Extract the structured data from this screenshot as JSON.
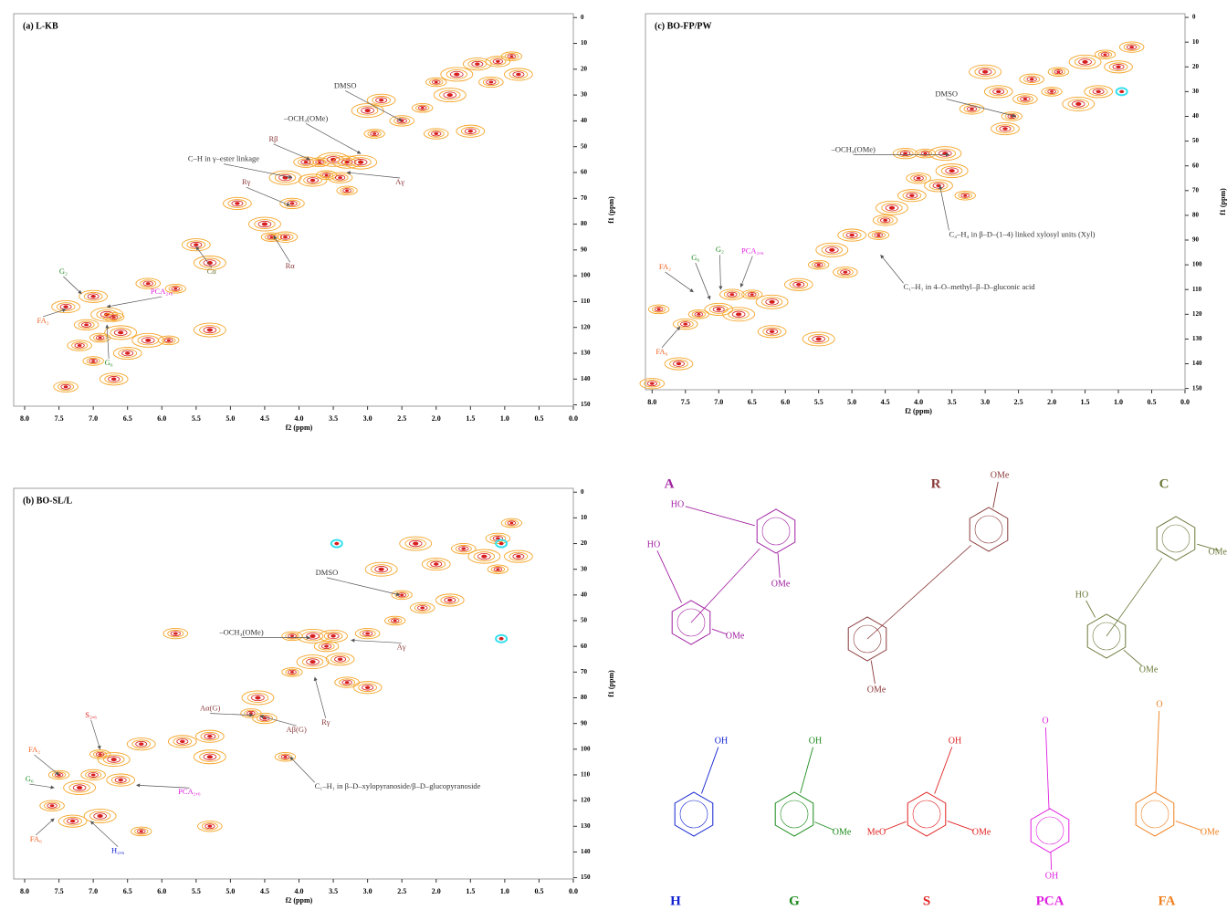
{
  "chart_data": [
    {
      "type": "contour",
      "title": "(a) L-KB",
      "xlabel": "f2 (ppm)",
      "ylabel": "f1 (ppm)",
      "xlim": [
        8.16,
        0
      ],
      "ylim": [
        -1.5,
        150.5
      ],
      "xticks": [
        {
          "value": 8,
          "label": "8.0"
        },
        {
          "value": 7.5,
          "label": "7.5"
        },
        {
          "value": 7,
          "label": "7.0"
        },
        {
          "value": 6.5,
          "label": "6.5"
        },
        {
          "value": 6,
          "label": "6.0"
        },
        {
          "value": 5.5,
          "label": "5.5"
        },
        {
          "value": 5,
          "label": "5.0"
        },
        {
          "value": 4.5,
          "label": "4.5"
        },
        {
          "value": 4,
          "label": "4.0"
        },
        {
          "value": 3.5,
          "label": "3.5"
        },
        {
          "value": 3,
          "label": "3.0"
        },
        {
          "value": 2.5,
          "label": "2.5"
        },
        {
          "value": 2,
          "label": "2.0"
        },
        {
          "value": 1.5,
          "label": "1.5"
        },
        {
          "value": 1,
          "label": "1.0"
        },
        {
          "value": 0.5,
          "label": "0.5"
        },
        {
          "value": 0,
          "label": "0.0"
        }
      ],
      "yticks": [
        0,
        10,
        20,
        30,
        40,
        50,
        60,
        70,
        80,
        90,
        100,
        110,
        120,
        130,
        140,
        150
      ],
      "color": "#f5a52a",
      "core_color": "#d61e1e",
      "accent_color": "#36e0f0",
      "peaks": {
        "x": [
          0.9,
          1.1,
          1.4,
          1.7,
          2.0,
          1.2,
          0.8,
          1.8,
          2.2,
          2.5,
          2.8,
          3.0,
          2.9,
          2.0,
          1.5,
          3.5,
          3.7,
          3.9,
          3.3,
          3.1,
          3.6,
          3.4,
          3.8,
          4.2,
          3.3,
          4.1,
          4.9,
          4.5,
          4.4,
          4.2,
          5.5,
          5.3,
          5.8,
          6.2,
          7.0,
          6.8,
          6.7,
          7.1,
          7.4,
          6.6,
          6.9,
          7.2,
          6.5,
          6.2,
          7.0,
          7.4,
          6.7,
          5.3,
          5.9
        ],
        "y": [
          15,
          17,
          18,
          22,
          25,
          25,
          22,
          30,
          35,
          40,
          32,
          36,
          45,
          45,
          44,
          55,
          56,
          56,
          56,
          56,
          61,
          62,
          63,
          62,
          67,
          72,
          72,
          80,
          85,
          85,
          88,
          95,
          105,
          103,
          108,
          115,
          116,
          119,
          112,
          122,
          124,
          127,
          130,
          125,
          133,
          143,
          140,
          121,
          125
        ]
      },
      "accent_peaks": {
        "x": [],
        "y": []
      },
      "annotations": [
        {
          "text": "DMSO",
          "x": 2.5,
          "y": 40,
          "color": "#333333"
        },
        {
          "text": "–OCH₃(OMe)",
          "x": 3.1,
          "y": 52.7,
          "color": "#333333"
        },
        {
          "text": "Rβ",
          "x": 3.84,
          "y": 55,
          "color": "#8b3a3a"
        },
        {
          "text": "C–H in γ–ester linkage",
          "x": 4.1,
          "y": 62,
          "color": "#333333"
        },
        {
          "text": "Aγ",
          "x": 3.3,
          "y": 60,
          "color": "#8b3a3a"
        },
        {
          "text": "Rγ",
          "x": 4.13,
          "y": 72.8,
          "color": "#8b3a3a"
        },
        {
          "text": "Rα",
          "x": 4.37,
          "y": 84.5,
          "color": "#8b3a3a"
        },
        {
          "text": "Cα",
          "x": 5.5,
          "y": 88.7,
          "color": "#6b7a3a"
        },
        {
          "text": "G₂",
          "x": 7.17,
          "y": 107,
          "color": "#1a8a1a"
        },
        {
          "text": "PCA₂,₆",
          "x": 6.8,
          "y": 112,
          "color": "#e020e0"
        },
        {
          "text": "FA₂",
          "x": 7.4,
          "y": 113,
          "color": "#f06020"
        },
        {
          "text": "G₆",
          "x": 6.8,
          "y": 119,
          "color": "#1a8a1a"
        }
      ]
    },
    {
      "type": "contour",
      "title": "(b) BO-SL/L",
      "xlabel": "f2 (ppm)",
      "ylabel": "f1 (ppm)",
      "xlim": [
        8.16,
        0
      ],
      "ylim": [
        -1.5,
        150.5
      ],
      "xticks": [
        {
          "value": 8,
          "label": "8.0"
        },
        {
          "value": 7.5,
          "label": "7.5"
        },
        {
          "value": 7,
          "label": "7.0"
        },
        {
          "value": 6.5,
          "label": "6.5"
        },
        {
          "value": 6,
          "label": "6.0"
        },
        {
          "value": 5.5,
          "label": "5.5"
        },
        {
          "value": 5,
          "label": "5.0"
        },
        {
          "value": 4.5,
          "label": "4.5"
        },
        {
          "value": 4,
          "label": "4.0"
        },
        {
          "value": 3.5,
          "label": "3.5"
        },
        {
          "value": 3,
          "label": "3.0"
        },
        {
          "value": 2.5,
          "label": "2.5"
        },
        {
          "value": 2,
          "label": "2.0"
        },
        {
          "value": 1.5,
          "label": "1.5"
        },
        {
          "value": 1,
          "label": "1.0"
        },
        {
          "value": 0.5,
          "label": "0.5"
        },
        {
          "value": 0,
          "label": "0.0"
        }
      ],
      "yticks": [
        0,
        10,
        20,
        30,
        40,
        50,
        60,
        70,
        80,
        90,
        100,
        110,
        120,
        130,
        140,
        150
      ],
      "color": "#f5a52a",
      "core_color": "#d61e1e",
      "accent_color": "#36e0f0",
      "peaks": {
        "x": [
          0.9,
          1.1,
          0.8,
          1.3,
          1.1,
          1.6,
          2.0,
          2.3,
          2.5,
          2.2,
          1.8,
          2.8,
          2.6,
          3.0,
          3.5,
          3.8,
          4.1,
          3.6,
          3.4,
          3.8,
          4.1,
          3.3,
          3.0,
          4.6,
          4.7,
          4.5,
          5.3,
          5.3,
          4.2,
          5.8,
          6.3,
          6.7,
          6.9,
          7.0,
          6.6,
          7.2,
          7.5,
          7.6,
          7.3,
          6.9,
          6.3,
          5.3,
          5.7
        ],
        "y": [
          12,
          18,
          25,
          25,
          30,
          22,
          28,
          20,
          40,
          45,
          42,
          30,
          50,
          55,
          56,
          56,
          56,
          60,
          65,
          66,
          70,
          74,
          76,
          80,
          86,
          88,
          95,
          103,
          103,
          55,
          98,
          104,
          102,
          110,
          112,
          115,
          110,
          122,
          128,
          126,
          132,
          130,
          97
        ]
      },
      "accent_peaks": {
        "x": [
          3.45,
          1.05,
          1.05
        ],
        "y": [
          20,
          57,
          20
        ]
      },
      "annotations": [
        {
          "text": "DMSO",
          "x": 2.53,
          "y": 40,
          "color": "#333333"
        },
        {
          "text": "–OCH₃(OMe)",
          "x": 3.84,
          "y": 56.6,
          "color": "#333333"
        },
        {
          "text": "Aγ",
          "x": 3.24,
          "y": 57.6,
          "color": "#8b3a3a"
        },
        {
          "text": "Aα(G)",
          "x": 4.67,
          "y": 86.8,
          "color": "#8b3a3a"
        },
        {
          "text": "Aβ(G)",
          "x": 4.57,
          "y": 87,
          "color": "#8b3a3a"
        },
        {
          "text": "Rγ",
          "x": 3.77,
          "y": 72,
          "color": "#8b3a3a"
        },
        {
          "text": "C₁–H₁ in β–D–xylopyranoside/β–D–glucopyranoside",
          "x": 4.13,
          "y": 103,
          "color": "#333333"
        },
        {
          "text": "S₂,₆",
          "x": 6.9,
          "y": 100,
          "color": "#e02020"
        },
        {
          "text": "FA₂",
          "x": 7.5,
          "y": 110,
          "color": "#f06020"
        },
        {
          "text": "G₆",
          "x": 7.57,
          "y": 115,
          "color": "#1a8a1a"
        },
        {
          "text": "PCA₂,₆",
          "x": 6.37,
          "y": 114,
          "color": "#e020e0"
        },
        {
          "text": "FA₆",
          "x": 7.57,
          "y": 127,
          "color": "#f06020"
        },
        {
          "text": "H₂,₆",
          "x": 7.04,
          "y": 128,
          "color": "#1020d0"
        }
      ]
    },
    {
      "type": "contour",
      "title": "(c) BO-FP/PW",
      "xlabel": "f2 (ppm)",
      "ylabel": "f1 (ppm)",
      "xlim": [
        8.1,
        0
      ],
      "ylim": [
        -1.5,
        150.5
      ],
      "xticks": [
        {
          "value": 8,
          "label": "8.0"
        },
        {
          "value": 7.5,
          "label": "7.5"
        },
        {
          "value": 7,
          "label": "7.0"
        },
        {
          "value": 6.5,
          "label": "6.5"
        },
        {
          "value": 6,
          "label": "6.0"
        },
        {
          "value": 5.5,
          "label": "5.5"
        },
        {
          "value": 5,
          "label": "5.0"
        },
        {
          "value": 4.5,
          "label": "4.5"
        },
        {
          "value": 4,
          "label": "4.0"
        },
        {
          "value": 3.5,
          "label": "3.5"
        },
        {
          "value": 3,
          "label": "3.0"
        },
        {
          "value": 2.5,
          "label": "2.5"
        },
        {
          "value": 2,
          "label": "2.0"
        },
        {
          "value": 1.5,
          "label": "1.5"
        },
        {
          "value": 1,
          "label": "1.0"
        },
        {
          "value": 0.5,
          "label": "0.5"
        },
        {
          "value": 0,
          "label": "0.0"
        }
      ],
      "yticks": [
        0,
        10,
        20,
        30,
        40,
        50,
        60,
        70,
        80,
        90,
        100,
        110,
        120,
        130,
        140,
        150
      ],
      "color": "#f5a52a",
      "core_color": "#d61e1e",
      "accent_color": "#36e0f0",
      "peaks": {
        "x": [
          1.2,
          0.8,
          1.0,
          1.5,
          1.9,
          2.3,
          1.3,
          1.6,
          2.0,
          2.4,
          2.8,
          3.0,
          2.6,
          3.2,
          2.7,
          3.6,
          3.9,
          4.2,
          3.7,
          3.5,
          3.3,
          4.0,
          4.1,
          4.4,
          4.6,
          4.5,
          5.0,
          5.3,
          5.5,
          5.1,
          5.8,
          6.2,
          6.5,
          6.8,
          7.0,
          6.7,
          7.3,
          7.5,
          6.2,
          5.5,
          7.9,
          8.0,
          7.6
        ],
        "y": [
          15,
          12,
          20,
          18,
          22,
          25,
          30,
          35,
          30,
          33,
          30,
          22,
          40,
          37,
          45,
          55,
          55,
          55,
          68,
          62,
          72,
          65,
          72,
          77,
          88,
          82,
          88,
          94,
          100,
          103,
          108,
          115,
          112,
          112,
          118,
          120,
          120,
          124,
          127,
          130,
          118,
          148,
          140
        ]
      },
      "accent_peaks": {
        "x": [
          0.95
        ],
        "y": [
          30
        ]
      },
      "annotations": [
        {
          "text": "DMSO",
          "x": 2.54,
          "y": 40,
          "color": "#333333"
        },
        {
          "text": "–OCH₃(OMe)",
          "x": 3.54,
          "y": 55.5,
          "color": "#333333"
        },
        {
          "text": "C₄–H₄ in β–D–(1–4) linked xylosyl units (Xyl)",
          "x": 3.68,
          "y": 68,
          "color": "#333333"
        },
        {
          "text": "C₁–H₁ in 4–O–methyl–β–D–gluconic acid",
          "x": 4.57,
          "y": 96,
          "color": "#333333"
        },
        {
          "text": "FA₂",
          "x": 7.38,
          "y": 111,
          "color": "#f06020"
        },
        {
          "text": "G₆",
          "x": 7.13,
          "y": 114,
          "color": "#1a8a1a"
        },
        {
          "text": "G₂",
          "x": 6.97,
          "y": 110,
          "color": "#1a8a1a"
        },
        {
          "text": "PCA₂,₆",
          "x": 6.67,
          "y": 109,
          "color": "#e020e0"
        },
        {
          "text": "FA₆",
          "x": 7.58,
          "y": 125,
          "color": "#f06020"
        }
      ]
    }
  ],
  "structures": [
    {
      "label": "A",
      "color": "#a020a0",
      "groups": [
        "HO",
        "HO",
        "OMe",
        "OMe"
      ]
    },
    {
      "label": "R",
      "color": "#8b3a3a",
      "groups": [
        "OMe",
        "OMe"
      ]
    },
    {
      "label": "C",
      "color": "#6b7a3a",
      "groups": [
        "HO",
        "OMe",
        "OMe"
      ]
    },
    {
      "label": "H",
      "color": "#1020d0",
      "groups": [
        "OH"
      ]
    },
    {
      "label": "G",
      "color": "#1a8a1a",
      "groups": [
        "OH",
        "OMe"
      ]
    },
    {
      "label": "S",
      "color": "#e02020",
      "groups": [
        "OH",
        "MeO",
        "OMe"
      ]
    },
    {
      "label": "PCA",
      "color": "#e020e0",
      "groups": [
        "OH",
        "O"
      ]
    },
    {
      "label": "FA",
      "color": "#f08020",
      "groups": [
        "O",
        "OMe"
      ]
    }
  ]
}
